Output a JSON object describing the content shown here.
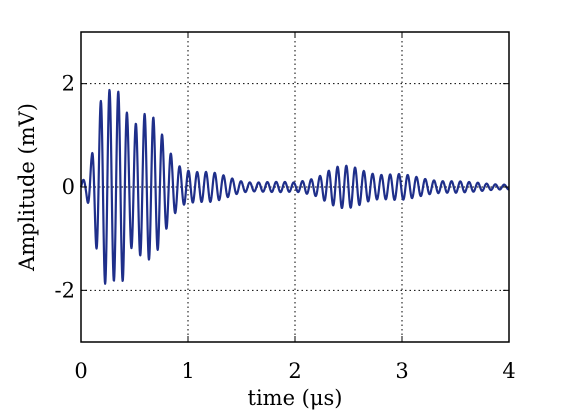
{
  "chart_data": {
    "type": "line",
    "xlabel": "time (μs)",
    "ylabel": "Amplitude (mV)",
    "xlim": [
      0,
      4
    ],
    "ylim": [
      -3,
      3
    ],
    "x_ticks": [
      0,
      1,
      2,
      3,
      4
    ],
    "x_tick_labels": [
      "0",
      "1",
      "2",
      "3",
      "4"
    ],
    "y_ticks": [
      -2,
      0,
      2
    ],
    "y_tick_labels": [
      "-2",
      "0",
      "2"
    ],
    "grid": "dotted",
    "line_color": "#1f2f8a",
    "series": [
      {
        "x": [
          0.0,
          0.05,
          0.1,
          0.15,
          0.2,
          0.25,
          0.3,
          0.35,
          0.4,
          0.45,
          0.5,
          0.55,
          0.6,
          0.65,
          0.7,
          0.75,
          0.8,
          0.85,
          0.9,
          0.95,
          1.0,
          1.1,
          1.2,
          1.3,
          1.4,
          1.5,
          1.6,
          1.8,
          2.0,
          2.2,
          2.3,
          2.4,
          2.5,
          2.6,
          2.7,
          2.8,
          2.9,
          3.0,
          3.1,
          3.2,
          3.3,
          3.4,
          3.6,
          3.8,
          4.0
        ],
        "envelope": [
          0.1,
          0.2,
          0.6,
          1.3,
          2.0,
          2.3,
          2.4,
          2.6,
          2.6,
          1.6,
          1.5,
          1.5,
          1.5,
          1.4,
          1.3,
          1.1,
          0.9,
          0.75,
          0.6,
          0.5,
          0.45,
          0.35,
          0.3,
          0.25,
          0.2,
          0.15,
          0.12,
          0.1,
          0.1,
          0.25,
          0.35,
          0.4,
          0.42,
          0.42,
          0.38,
          0.32,
          0.28,
          0.25,
          0.22,
          0.2,
          0.18,
          0.15,
          0.1,
          0.08,
          0.06
        ]
      }
    ]
  }
}
